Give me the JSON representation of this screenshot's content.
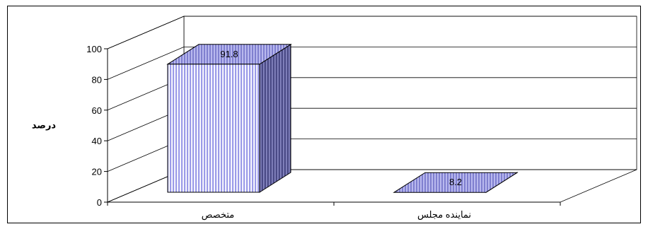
{
  "chart_data": {
    "type": "bar",
    "categories": [
      "متخصص",
      "نماینده مجلس"
    ],
    "values": [
      91.8,
      8.2
    ],
    "data_labels": [
      "91.8",
      "8.2"
    ],
    "title": "",
    "xlabel": "",
    "ylabel": "درصد",
    "ylim": [
      0,
      100
    ],
    "yticks": [
      0,
      20,
      40,
      60,
      80,
      100
    ],
    "style": "3d",
    "grid": true,
    "legend": "none",
    "colors": {
      "bar_front": "#b3b3f0",
      "bar_stripe": "#ffffff",
      "bar_side": "#5a5a9a",
      "bar_top": "#8d8dd6",
      "grid": "#000000"
    }
  }
}
